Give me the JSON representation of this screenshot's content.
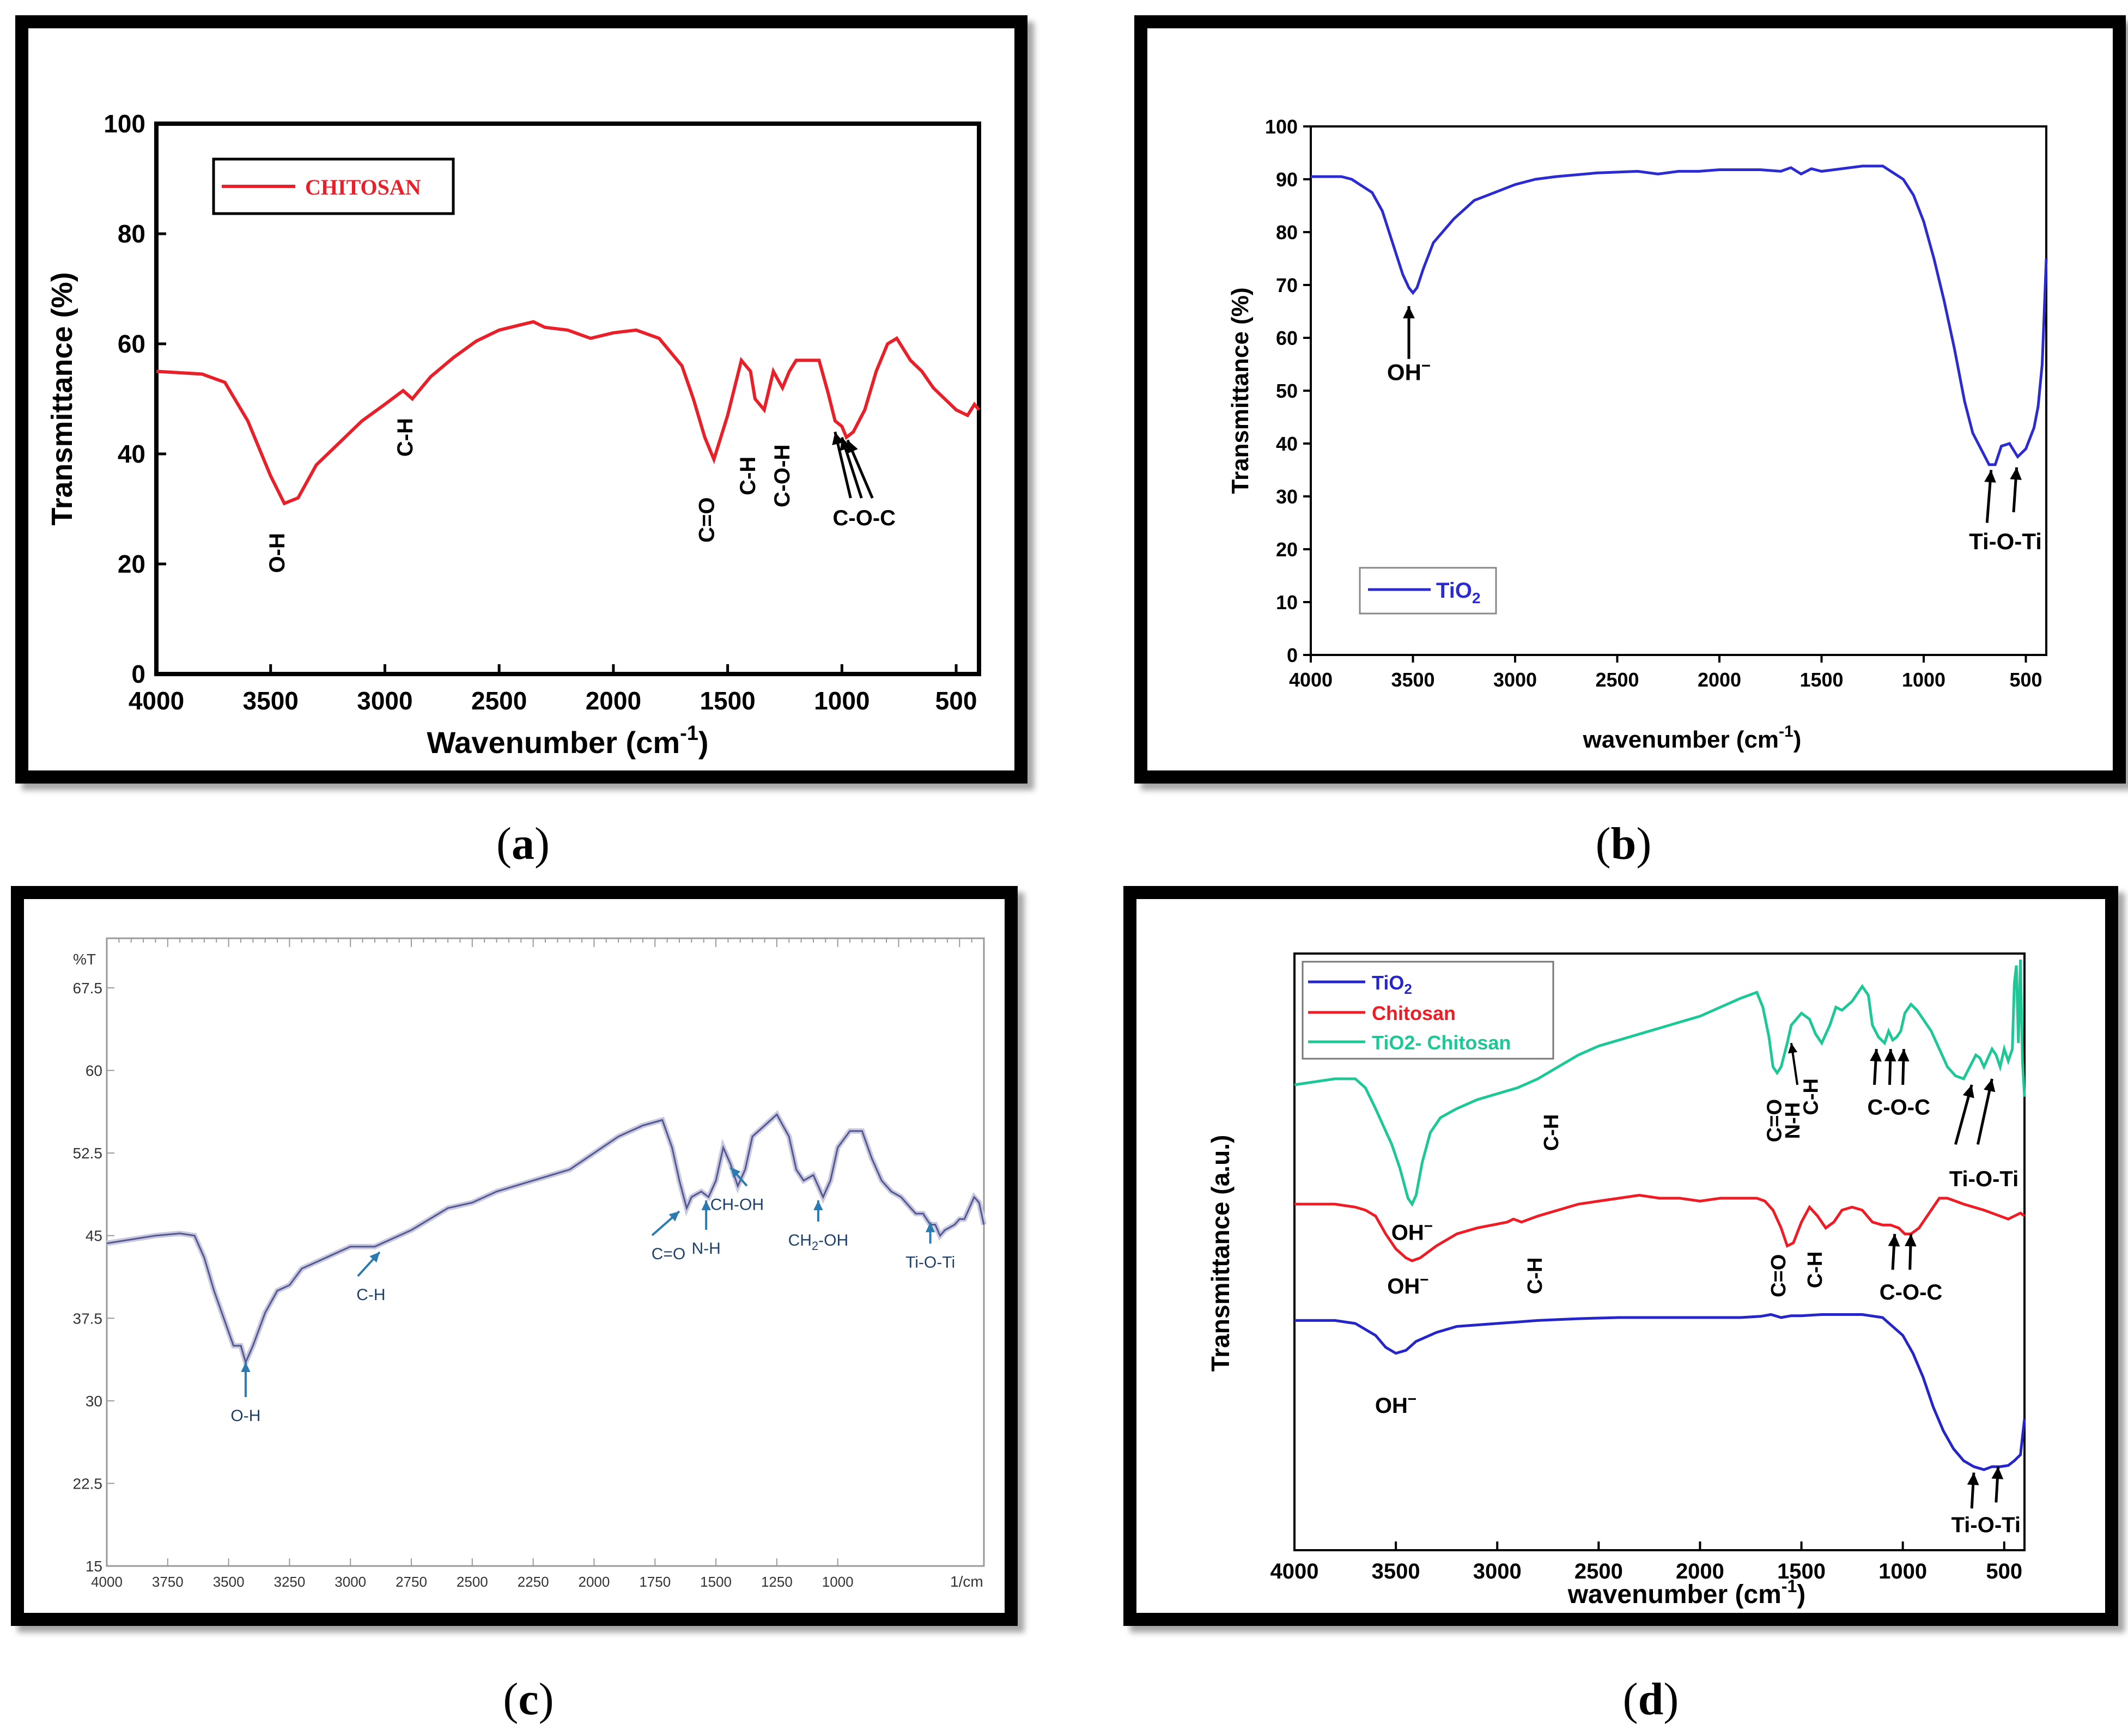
{
  "captions": {
    "a": "a",
    "b": "b",
    "c": "c",
    "d": "d"
  },
  "chart_data": [
    {
      "id": "a",
      "type": "line",
      "title": "",
      "xlabel": "Wavenumber (cm",
      "xlabel_sup": "-1",
      "xlabel_tail": ")",
      "ylabel": "Transmittance (%)",
      "xlim": [
        4000,
        400
      ],
      "ylim": [
        0,
        100
      ],
      "xticks": [
        4000,
        3500,
        3000,
        2500,
        2000,
        1500,
        1000,
        500
      ],
      "yticks": [
        0,
        20,
        40,
        60,
        80,
        100
      ],
      "legend": "top-left",
      "color": "#e8202a",
      "series": [
        {
          "name": "CHITOSAN",
          "x": [
            4000,
            3800,
            3700,
            3600,
            3500,
            3440,
            3380,
            3300,
            3200,
            3100,
            3000,
            2920,
            2880,
            2800,
            2700,
            2600,
            2500,
            2400,
            2350,
            2300,
            2200,
            2100,
            2000,
            1900,
            1800,
            1700,
            1650,
            1600,
            1560,
            1500,
            1440,
            1400,
            1380,
            1340,
            1300,
            1260,
            1230,
            1200,
            1150,
            1100,
            1060,
            1030,
            1000,
            980,
            950,
            900,
            850,
            800,
            760,
            700,
            650,
            600,
            550,
            500,
            450,
            420,
            400
          ],
          "y": [
            55,
            54.5,
            53,
            46,
            36,
            31,
            32,
            38,
            42,
            46,
            49,
            51.5,
            50,
            54,
            57.5,
            60.5,
            62.5,
            63.5,
            64,
            63,
            62.5,
            61,
            62,
            62.5,
            61,
            56,
            50,
            43,
            39,
            47,
            57,
            55,
            50,
            48,
            55,
            52,
            55,
            57,
            57,
            57,
            51,
            46,
            45,
            43,
            44,
            48,
            55,
            60,
            61,
            57,
            55,
            52,
            50,
            48,
            47,
            49,
            48
          ]
        }
      ],
      "annotations": [
        {
          "text": "O-H",
          "x": 3440,
          "y": 22
        },
        {
          "text": "C-H",
          "x": 2880,
          "y": 43
        },
        {
          "text": "C=O",
          "x": 1560,
          "y": 28
        },
        {
          "text": "C-H",
          "x": 1380,
          "y": 36
        },
        {
          "text": "C-O-H",
          "x": 1230,
          "y": 36
        },
        {
          "text": "C-O-C",
          "x": 950,
          "y": 29
        }
      ]
    },
    {
      "id": "b",
      "type": "line",
      "xlabel": "wavenumber (cm",
      "xlabel_sup": "-1",
      "xlabel_tail": ")",
      "ylabel": "Transmittance (%)",
      "xlim": [
        4000,
        400
      ],
      "ylim": [
        0,
        100
      ],
      "xticks": [
        4000,
        3500,
        3000,
        2500,
        2000,
        1500,
        1000,
        500
      ],
      "yticks": [
        0,
        10,
        20,
        30,
        40,
        50,
        60,
        70,
        80,
        90,
        100
      ],
      "legend": "bottom-left",
      "color": "#2b2bd0",
      "series": [
        {
          "name": "TiO",
          "name_sub": "2",
          "x": [
            4000,
            3900,
            3850,
            3800,
            3700,
            3650,
            3600,
            3550,
            3520,
            3500,
            3480,
            3450,
            3400,
            3300,
            3200,
            3100,
            3000,
            2900,
            2800,
            2600,
            2400,
            2300,
            2200,
            2100,
            2000,
            1900,
            1800,
            1700,
            1650,
            1600,
            1550,
            1500,
            1400,
            1300,
            1200,
            1100,
            1050,
            1000,
            950,
            900,
            850,
            800,
            760,
            720,
            680,
            650,
            620,
            580,
            540,
            500,
            460,
            440,
            420,
            410,
            400
          ],
          "y": [
            90.5,
            90.5,
            90.5,
            90,
            87.5,
            84,
            78,
            72,
            69.5,
            68.5,
            69.5,
            73,
            78,
            82.5,
            86,
            87.5,
            89,
            90,
            90.5,
            91.2,
            91.5,
            91,
            91.5,
            91.5,
            91.8,
            91.8,
            91.8,
            91.5,
            92.2,
            91,
            92,
            91.5,
            92,
            92.5,
            92.5,
            90,
            87,
            82,
            75,
            67,
            58,
            48,
            42,
            39,
            36,
            36,
            39.5,
            40,
            37.5,
            39,
            43,
            47,
            55,
            65,
            75
          ]
        }
      ],
      "annotations": [
        {
          "text": "OH",
          "sup": "−",
          "x": 3520,
          "y": 52
        },
        {
          "text": "Ti-O-Ti",
          "x": 600,
          "y": 20
        }
      ]
    },
    {
      "id": "c",
      "type": "line",
      "ylabel": "%T",
      "xunit": "1/cm",
      "xlim": [
        4000,
        400
      ],
      "ylim": [
        15,
        72
      ],
      "xticks": [
        4000,
        3750,
        3500,
        3250,
        3000,
        2750,
        2500,
        2250,
        2000,
        1750,
        1500,
        1250,
        1000
      ],
      "yticks": [
        15,
        22.5,
        30,
        37.5,
        45,
        52.5,
        60,
        67.5
      ],
      "color": "#55578f",
      "series": [
        {
          "name": "TiO2-Chitosan",
          "x": [
            4000,
            3800,
            3700,
            3640,
            3600,
            3560,
            3520,
            3480,
            3450,
            3430,
            3400,
            3350,
            3300,
            3250,
            3200,
            3100,
            3000,
            2900,
            2750,
            2600,
            2500,
            2400,
            2250,
            2100,
            2000,
            1900,
            1800,
            1720,
            1680,
            1650,
            1620,
            1600,
            1560,
            1530,
            1500,
            1470,
            1440,
            1410,
            1380,
            1350,
            1300,
            1250,
            1200,
            1170,
            1140,
            1100,
            1060,
            1030,
            1000,
            950,
            900,
            860,
            820,
            780,
            740,
            720,
            700,
            680,
            650,
            620,
            600,
            580,
            560,
            520,
            500,
            480,
            460,
            440,
            420,
            400
          ],
          "y": [
            44.3,
            45,
            45.2,
            45,
            43,
            40,
            37.5,
            35,
            35,
            33.5,
            35,
            38,
            40,
            40.5,
            42,
            43,
            44,
            44,
            45.5,
            47.5,
            48,
            49,
            50,
            51,
            52.5,
            54,
            55,
            55.5,
            53,
            50,
            47.5,
            48.5,
            49,
            48.5,
            50,
            53,
            51.5,
            49.5,
            51,
            54,
            55,
            56,
            54,
            51,
            50,
            50.5,
            48.5,
            50,
            53,
            54.5,
            54.5,
            52,
            50,
            49,
            48.5,
            48,
            47.5,
            47,
            47,
            46,
            46,
            45,
            45.5,
            46,
            46.5,
            46.5,
            47.5,
            48.5,
            48,
            46
          ]
        }
      ],
      "annotations": [
        {
          "text": "O-H",
          "x": 3430,
          "y": 30
        },
        {
          "text": "C-H",
          "x": 2850,
          "y": 41
        },
        {
          "text": "C=O",
          "x": 1640,
          "y": 45
        },
        {
          "text": "N-H",
          "x": 1540,
          "y": 45
        },
        {
          "text": "CH-OH",
          "x": 1400,
          "y": 48
        },
        {
          "text": "CH",
          "sub": "2",
          "tail": "-OH",
          "x": 1100,
          "y": 45
        },
        {
          "text": "Ti-O-Ti",
          "x": 600,
          "y": 45
        }
      ]
    },
    {
      "id": "d",
      "type": "line",
      "xlabel": "wavenumber (cm",
      "xlabel_sup": "-1",
      "xlabel_tail": ")",
      "ylabel": "Transmittance (a.u.)",
      "xlim": [
        4000,
        400
      ],
      "ylim": [
        0,
        100
      ],
      "xticks": [
        4000,
        3500,
        3000,
        2500,
        2000,
        1500,
        1000,
        500
      ],
      "legend": "top-left",
      "series": [
        {
          "name": "TiO",
          "name_sub": "2",
          "color": "#2626c8",
          "x": [
            4000,
            3800,
            3700,
            3600,
            3550,
            3500,
            3450,
            3400,
            3300,
            3200,
            3000,
            2800,
            2600,
            2400,
            2200,
            2000,
            1800,
            1700,
            1650,
            1600,
            1550,
            1500,
            1400,
            1300,
            1200,
            1100,
            1000,
            950,
            900,
            850,
            800,
            750,
            700,
            650,
            600,
            560,
            520,
            480,
            450,
            420,
            400
          ],
          "y": [
            38.5,
            38.5,
            38,
            36,
            34,
            33,
            33.5,
            35,
            36.5,
            37.5,
            38,
            38.5,
            38.8,
            39,
            39,
            39,
            39,
            39.2,
            39.5,
            39,
            39.3,
            39.3,
            39.5,
            39.5,
            39.5,
            39,
            36,
            33,
            29,
            24,
            20,
            17,
            15,
            14,
            13.5,
            14,
            14,
            14.2,
            15,
            16,
            22
          ]
        },
        {
          "name": "Chitosan",
          "color": "#ee1c24",
          "x": [
            4000,
            3800,
            3700,
            3650,
            3600,
            3550,
            3500,
            3450,
            3420,
            3380,
            3300,
            3200,
            3100,
            2950,
            2920,
            2880,
            2800,
            2700,
            2600,
            2500,
            2400,
            2300,
            2200,
            2100,
            2000,
            1900,
            1800,
            1720,
            1680,
            1640,
            1600,
            1570,
            1540,
            1500,
            1460,
            1420,
            1380,
            1340,
            1300,
            1250,
            1200,
            1150,
            1100,
            1060,
            1020,
            990,
            960,
            920,
            880,
            820,
            780,
            740,
            700,
            650,
            600,
            560,
            520,
            480,
            450,
            420,
            400
          ],
          "y": [
            58,
            58,
            57.5,
            57,
            56,
            53,
            50.5,
            49,
            48.5,
            49,
            51,
            53,
            54,
            55,
            55.5,
            55,
            56,
            57,
            58,
            58.5,
            59,
            59.5,
            59,
            59,
            58.5,
            59,
            59,
            59,
            58.5,
            57,
            54,
            51,
            51.5,
            55,
            57.5,
            56,
            54,
            55,
            57,
            57.5,
            57,
            55,
            54.5,
            54.5,
            54,
            53,
            53,
            54,
            56,
            59,
            59,
            58.5,
            58,
            57.5,
            57,
            56.5,
            56,
            55.5,
            56,
            56.5,
            56
          ]
        },
        {
          "name": "TiO2- Chitosan",
          "color": "#1ec896",
          "x": [
            4000,
            3900,
            3800,
            3700,
            3650,
            3600,
            3560,
            3520,
            3480,
            3440,
            3420,
            3400,
            3370,
            3330,
            3280,
            3200,
            3100,
            3000,
            2900,
            2800,
            2700,
            2600,
            2500,
            2400,
            2300,
            2200,
            2100,
            2000,
            1900,
            1800,
            1760,
            1720,
            1690,
            1660,
            1640,
            1620,
            1600,
            1570,
            1550,
            1500,
            1460,
            1430,
            1400,
            1360,
            1330,
            1300,
            1250,
            1200,
            1170,
            1150,
            1120,
            1090,
            1070,
            1050,
            1030,
            1010,
            990,
            960,
            930,
            900,
            860,
            820,
            780,
            740,
            700,
            670,
            640,
            620,
            600,
            580,
            560,
            540,
            520,
            500,
            480,
            460,
            450,
            440,
            430,
            420,
            410,
            400
          ],
          "y": [
            78,
            78.5,
            79,
            79,
            77.5,
            74,
            71,
            68,
            64,
            59,
            58,
            59.5,
            65,
            70,
            72.5,
            74,
            75.5,
            76.5,
            77.5,
            79,
            81,
            83,
            84.5,
            85.5,
            86.5,
            87.5,
            88.5,
            89.5,
            91,
            92.5,
            93,
            93.5,
            91,
            86,
            81,
            80,
            81,
            85,
            88,
            90,
            89,
            86.5,
            85,
            88,
            91,
            90.5,
            92,
            94.5,
            93,
            88,
            86,
            85,
            87,
            85.5,
            86,
            87,
            90,
            91.5,
            90.5,
            89,
            87,
            84,
            81,
            79.5,
            79,
            81,
            83,
            82.5,
            81,
            82.5,
            84,
            83,
            81,
            84,
            82,
            84,
            95,
            98,
            85,
            99,
            82,
            76
          ]
        }
      ],
      "annotations": [
        {
          "text": "OH",
          "sup": "−",
          "x": 3420,
          "y": 52
        },
        {
          "text": "C-H",
          "x": 2700,
          "y": 70
        },
        {
          "text": "C=O",
          "x": 1600,
          "y": 72
        },
        {
          "text": "N-H",
          "x": 1510,
          "y": 72
        },
        {
          "text": "C-H",
          "x": 1420,
          "y": 76
        },
        {
          "text": "C-O-C",
          "x": 1020,
          "y": 73
        },
        {
          "text": "Ti-O-Ti",
          "x": 600,
          "y": 61
        },
        {
          "text": "OH",
          "sup": "−",
          "x": 3440,
          "y": 43
        },
        {
          "text": "C-H",
          "x": 2780,
          "y": 46
        },
        {
          "text": "C=O",
          "x": 1580,
          "y": 46
        },
        {
          "text": "C-H",
          "x": 1400,
          "y": 47
        },
        {
          "text": "C-O-C",
          "x": 960,
          "y": 42
        },
        {
          "text": "OH",
          "sup": "−",
          "x": 3500,
          "y": 23
        },
        {
          "text": "Ti-O-Ti",
          "x": 590,
          "y": 3
        }
      ]
    }
  ]
}
